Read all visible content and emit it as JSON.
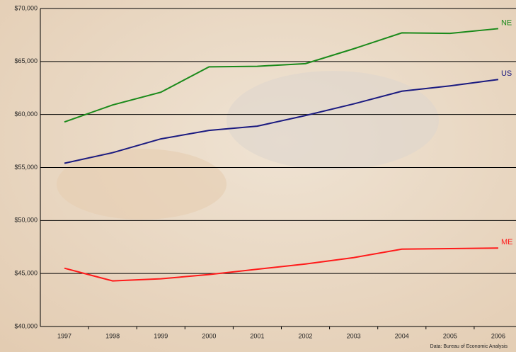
{
  "chart_data": {
    "type": "line",
    "categories": [
      "1997",
      "1998",
      "1999",
      "2000",
      "2001",
      "2002",
      "2003",
      "2004",
      "2005",
      "2006"
    ],
    "series": [
      {
        "name": "NE",
        "color": "#1a8a1a",
        "values": [
          59300,
          60900,
          62100,
          64500,
          64550,
          64800,
          66200,
          67700,
          67650,
          68100
        ]
      },
      {
        "name": "US",
        "color": "#1a1a80",
        "values": [
          55400,
          56400,
          57700,
          58500,
          58900,
          59900,
          61000,
          62200,
          62700,
          63300
        ]
      },
      {
        "name": "ME",
        "color": "#ff1a1a",
        "values": [
          45500,
          44300,
          44500,
          44900,
          45400,
          45900,
          46500,
          47300,
          47350,
          47400
        ]
      }
    ],
    "ylim": [
      40000,
      70000
    ],
    "yticks": [
      {
        "value": 40000,
        "label": "$40,000"
      },
      {
        "value": 45000,
        "label": "$45,000"
      },
      {
        "value": 50000,
        "label": "$50,000"
      },
      {
        "value": 55000,
        "label": "$55,000"
      },
      {
        "value": 60000,
        "label": "$60,000"
      },
      {
        "value": 65000,
        "label": "$65,000"
      },
      {
        "value": 70000,
        "label": "$70,000"
      }
    ],
    "grid": true,
    "source": "Data: Bureau of Economic Analysis"
  }
}
